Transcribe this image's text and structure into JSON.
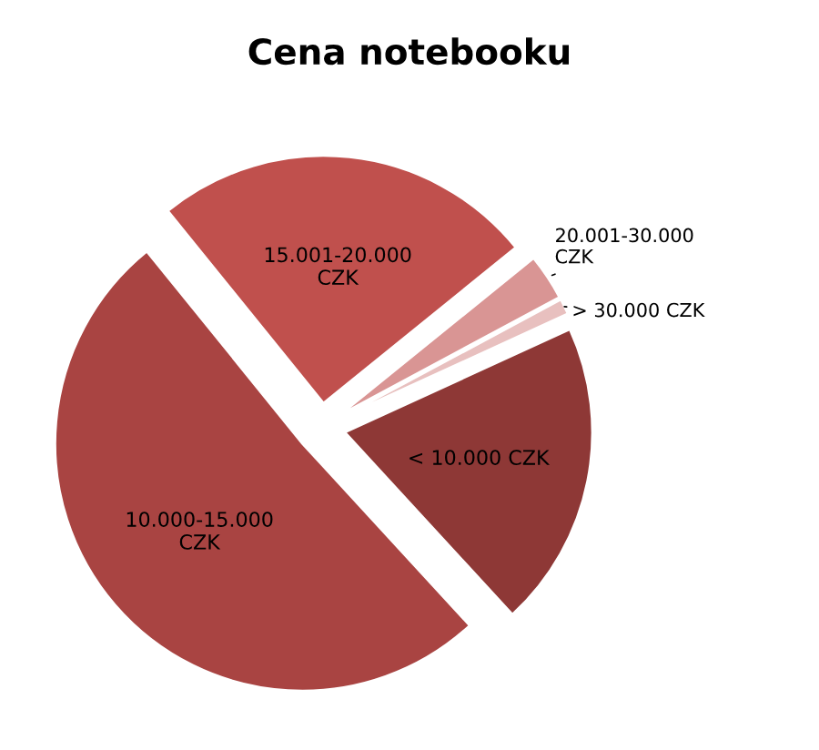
{
  "chart_data": {
    "type": "pie",
    "title": "Cena notebooku",
    "categories": [
      "15.001-20.000\nCZK",
      "20.001-30.000\nCZK",
      "> 30.000 CZK",
      "< 10.000 CZK",
      "10.000-15.000\nCZK"
    ],
    "values": [
      25,
      3,
      1,
      20,
      51
    ],
    "colors": [
      "#c0504d",
      "#d99594",
      "#e8c0bf",
      "#8e3836",
      "#a94442"
    ]
  }
}
